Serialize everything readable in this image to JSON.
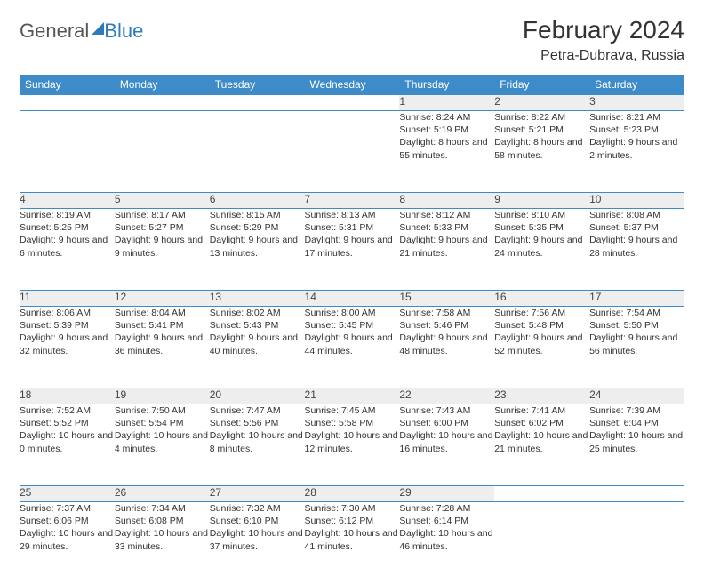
{
  "brand": {
    "word1": "General",
    "word2": "Blue"
  },
  "title": "February 2024",
  "location": "Petra-Dubrava, Russia",
  "weekday_header_bg": "#3d8bc9",
  "weekdays": [
    "Sunday",
    "Monday",
    "Tuesday",
    "Wednesday",
    "Thursday",
    "Friday",
    "Saturday"
  ],
  "weeks": [
    [
      null,
      null,
      null,
      null,
      {
        "n": "1",
        "sr": "Sunrise: 8:24 AM",
        "ss": "Sunset: 5:19 PM",
        "dl": "Daylight: 8 hours and 55 minutes."
      },
      {
        "n": "2",
        "sr": "Sunrise: 8:22 AM",
        "ss": "Sunset: 5:21 PM",
        "dl": "Daylight: 8 hours and 58 minutes."
      },
      {
        "n": "3",
        "sr": "Sunrise: 8:21 AM",
        "ss": "Sunset: 5:23 PM",
        "dl": "Daylight: 9 hours and 2 minutes."
      }
    ],
    [
      {
        "n": "4",
        "sr": "Sunrise: 8:19 AM",
        "ss": "Sunset: 5:25 PM",
        "dl": "Daylight: 9 hours and 6 minutes."
      },
      {
        "n": "5",
        "sr": "Sunrise: 8:17 AM",
        "ss": "Sunset: 5:27 PM",
        "dl": "Daylight: 9 hours and 9 minutes."
      },
      {
        "n": "6",
        "sr": "Sunrise: 8:15 AM",
        "ss": "Sunset: 5:29 PM",
        "dl": "Daylight: 9 hours and 13 minutes."
      },
      {
        "n": "7",
        "sr": "Sunrise: 8:13 AM",
        "ss": "Sunset: 5:31 PM",
        "dl": "Daylight: 9 hours and 17 minutes."
      },
      {
        "n": "8",
        "sr": "Sunrise: 8:12 AM",
        "ss": "Sunset: 5:33 PM",
        "dl": "Daylight: 9 hours and 21 minutes."
      },
      {
        "n": "9",
        "sr": "Sunrise: 8:10 AM",
        "ss": "Sunset: 5:35 PM",
        "dl": "Daylight: 9 hours and 24 minutes."
      },
      {
        "n": "10",
        "sr": "Sunrise: 8:08 AM",
        "ss": "Sunset: 5:37 PM",
        "dl": "Daylight: 9 hours and 28 minutes."
      }
    ],
    [
      {
        "n": "11",
        "sr": "Sunrise: 8:06 AM",
        "ss": "Sunset: 5:39 PM",
        "dl": "Daylight: 9 hours and 32 minutes."
      },
      {
        "n": "12",
        "sr": "Sunrise: 8:04 AM",
        "ss": "Sunset: 5:41 PM",
        "dl": "Daylight: 9 hours and 36 minutes."
      },
      {
        "n": "13",
        "sr": "Sunrise: 8:02 AM",
        "ss": "Sunset: 5:43 PM",
        "dl": "Daylight: 9 hours and 40 minutes."
      },
      {
        "n": "14",
        "sr": "Sunrise: 8:00 AM",
        "ss": "Sunset: 5:45 PM",
        "dl": "Daylight: 9 hours and 44 minutes."
      },
      {
        "n": "15",
        "sr": "Sunrise: 7:58 AM",
        "ss": "Sunset: 5:46 PM",
        "dl": "Daylight: 9 hours and 48 minutes."
      },
      {
        "n": "16",
        "sr": "Sunrise: 7:56 AM",
        "ss": "Sunset: 5:48 PM",
        "dl": "Daylight: 9 hours and 52 minutes."
      },
      {
        "n": "17",
        "sr": "Sunrise: 7:54 AM",
        "ss": "Sunset: 5:50 PM",
        "dl": "Daylight: 9 hours and 56 minutes."
      }
    ],
    [
      {
        "n": "18",
        "sr": "Sunrise: 7:52 AM",
        "ss": "Sunset: 5:52 PM",
        "dl": "Daylight: 10 hours and 0 minutes."
      },
      {
        "n": "19",
        "sr": "Sunrise: 7:50 AM",
        "ss": "Sunset: 5:54 PM",
        "dl": "Daylight: 10 hours and 4 minutes."
      },
      {
        "n": "20",
        "sr": "Sunrise: 7:47 AM",
        "ss": "Sunset: 5:56 PM",
        "dl": "Daylight: 10 hours and 8 minutes."
      },
      {
        "n": "21",
        "sr": "Sunrise: 7:45 AM",
        "ss": "Sunset: 5:58 PM",
        "dl": "Daylight: 10 hours and 12 minutes."
      },
      {
        "n": "22",
        "sr": "Sunrise: 7:43 AM",
        "ss": "Sunset: 6:00 PM",
        "dl": "Daylight: 10 hours and 16 minutes."
      },
      {
        "n": "23",
        "sr": "Sunrise: 7:41 AM",
        "ss": "Sunset: 6:02 PM",
        "dl": "Daylight: 10 hours and 21 minutes."
      },
      {
        "n": "24",
        "sr": "Sunrise: 7:39 AM",
        "ss": "Sunset: 6:04 PM",
        "dl": "Daylight: 10 hours and 25 minutes."
      }
    ],
    [
      {
        "n": "25",
        "sr": "Sunrise: 7:37 AM",
        "ss": "Sunset: 6:06 PM",
        "dl": "Daylight: 10 hours and 29 minutes."
      },
      {
        "n": "26",
        "sr": "Sunrise: 7:34 AM",
        "ss": "Sunset: 6:08 PM",
        "dl": "Daylight: 10 hours and 33 minutes."
      },
      {
        "n": "27",
        "sr": "Sunrise: 7:32 AM",
        "ss": "Sunset: 6:10 PM",
        "dl": "Daylight: 10 hours and 37 minutes."
      },
      {
        "n": "28",
        "sr": "Sunrise: 7:30 AM",
        "ss": "Sunset: 6:12 PM",
        "dl": "Daylight: 10 hours and 41 minutes."
      },
      {
        "n": "29",
        "sr": "Sunrise: 7:28 AM",
        "ss": "Sunset: 6:14 PM",
        "dl": "Daylight: 10 hours and 46 minutes."
      },
      null,
      null
    ]
  ]
}
